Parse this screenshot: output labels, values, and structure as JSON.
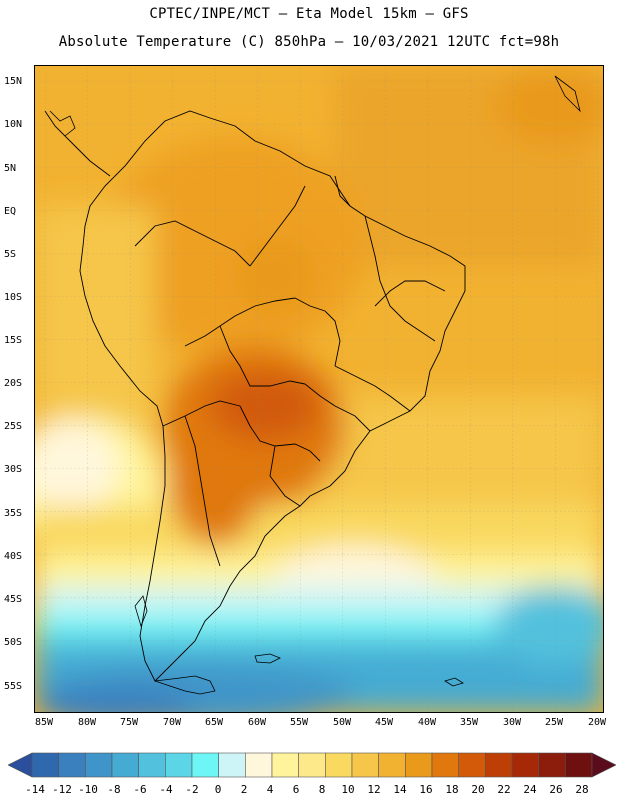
{
  "header": {
    "line1": "CPTEC/INPE/MCT –  Eta Model 15km – GFS",
    "line2": "Absolute Temperature (C) 850hPa – 10/03/2021 12UTC fct=98h"
  },
  "map": {
    "lat_labels": [
      "15N",
      "10N",
      "5N",
      "EQ",
      "5S",
      "10S",
      "15S",
      "20S",
      "25S",
      "30S",
      "35S",
      "40S",
      "45S",
      "50S",
      "55S"
    ],
    "lon_labels": [
      "85W",
      "80W",
      "75W",
      "70W",
      "65W",
      "60W",
      "55W",
      "50W",
      "45W",
      "40W",
      "35W",
      "30W",
      "25W",
      "20W"
    ]
  },
  "colorbar": {
    "labels": [
      "-14",
      "-12",
      "-10",
      "-8",
      "-6",
      "-4",
      "-2",
      "0",
      "2",
      "4",
      "6",
      "8",
      "10",
      "12",
      "14",
      "16",
      "18",
      "20",
      "22",
      "24",
      "26",
      "28"
    ],
    "colors": [
      "#2b4f9c",
      "#3068ad",
      "#3a80bf",
      "#3f95c9",
      "#45abd3",
      "#52c1dd",
      "#5cd6e6",
      "#6ef5f5",
      "#cdf4f6",
      "#fff7dc",
      "#fff49b",
      "#fde88a",
      "#f9d960",
      "#f5c64a",
      "#f2b231",
      "#e99a1b",
      "#e0780e",
      "#d25a08",
      "#bd3f06",
      "#a72806",
      "#8c1c0c",
      "#6e1010",
      "#5a0c1c"
    ]
  }
}
